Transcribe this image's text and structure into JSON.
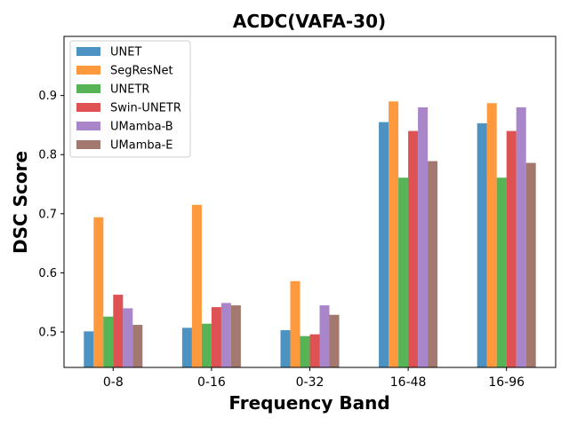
{
  "chart_data": {
    "type": "bar",
    "title": "ACDC(VAFA-30)",
    "xlabel": "Frequency Band",
    "ylabel": "DSC Score",
    "categories": [
      "0-8",
      "0-16",
      "0-32",
      "16-48",
      "16-96"
    ],
    "ylim": [
      0.44,
      1.0
    ],
    "yticks": [
      "0.5",
      "0.6",
      "0.7",
      "0.8",
      "0.9"
    ],
    "grid": false,
    "legend_position": "top-left",
    "series": [
      {
        "name": "UNET",
        "color": "#1f77b4",
        "values": [
          0.501,
          0.507,
          0.503,
          0.855,
          0.853
        ]
      },
      {
        "name": "SegResNet",
        "color": "#ff7f0e",
        "values": [
          0.694,
          0.715,
          0.586,
          0.89,
          0.887
        ]
      },
      {
        "name": "UNETR",
        "color": "#2ca02c",
        "values": [
          0.526,
          0.514,
          0.493,
          0.761,
          0.761
        ]
      },
      {
        "name": "Swin-UNETR",
        "color": "#d62728",
        "values": [
          0.563,
          0.542,
          0.496,
          0.84,
          0.84
        ]
      },
      {
        "name": "UMamba-B",
        "color": "#9467bd",
        "values": [
          0.54,
          0.549,
          0.545,
          0.88,
          0.88
        ]
      },
      {
        "name": "UMamba-E",
        "color": "#8c564b",
        "values": [
          0.512,
          0.545,
          0.529,
          0.789,
          0.786
        ]
      }
    ]
  }
}
